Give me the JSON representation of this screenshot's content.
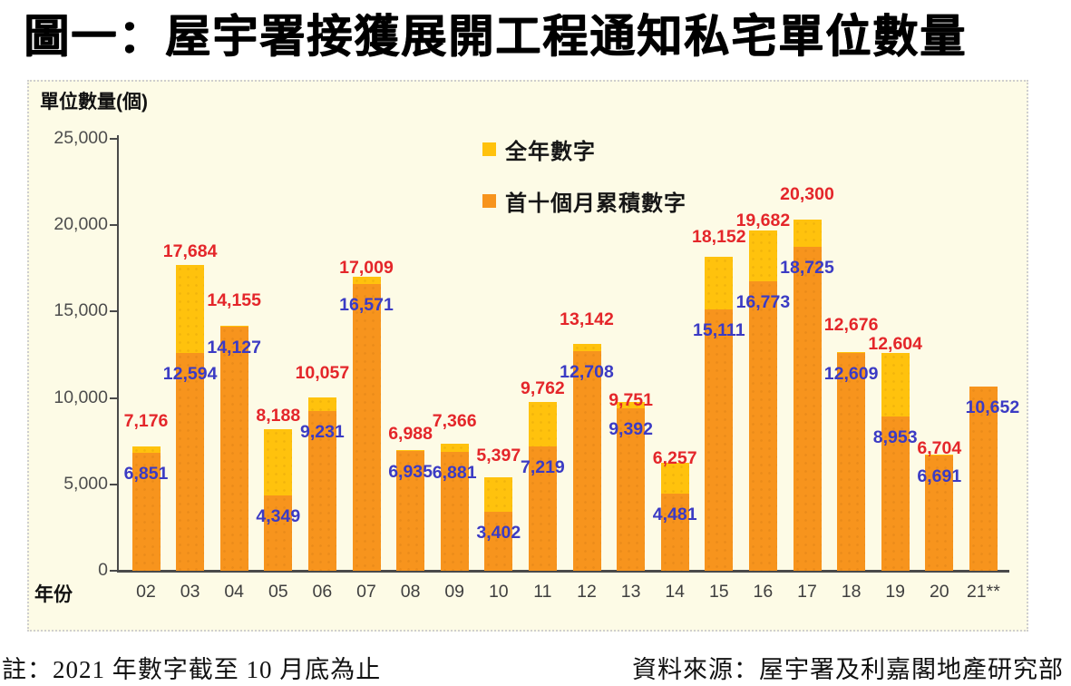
{
  "page": {
    "title": "圖一：屋宇署接獲展開工程通知私宅單位數量",
    "note_left": "註：2021 年數字截至 10 月底為止",
    "note_right": "資料來源：屋宇署及利嘉閣地產研究部"
  },
  "chart_data": {
    "type": "bar",
    "title": "圖一：屋宇署接獲展開工程通知私宅單位數量",
    "ylabel": "單位數量(個)",
    "xlabel": "年份",
    "categories": [
      "02",
      "03",
      "04",
      "05",
      "06",
      "07",
      "08",
      "09",
      "10",
      "11",
      "12",
      "13",
      "14",
      "15",
      "16",
      "17",
      "18",
      "19",
      "20",
      "21**"
    ],
    "series": [
      {
        "name": "全年數字",
        "color": "#FFC20D",
        "value_label_color": "#E4262A",
        "values": [
          7176,
          17684,
          14155,
          8188,
          10057,
          17009,
          6988,
          7366,
          5397,
          9762,
          13142,
          9751,
          6257,
          18152,
          19682,
          20300,
          12676,
          12604,
          6704,
          null
        ]
      },
      {
        "name": "首十個月累積數字",
        "color": "#F7941D",
        "value_label_color": "#3B3BC4",
        "values": [
          6851,
          12594,
          14127,
          4349,
          9231,
          16571,
          6935,
          6881,
          3402,
          7219,
          12708,
          9392,
          4481,
          15111,
          16773,
          18725,
          12609,
          8953,
          6691,
          10652
        ]
      }
    ],
    "ylim": [
      0,
      25000
    ],
    "ytick_step": 5000,
    "ytick_labels": [
      "0",
      "5,000",
      "10,000",
      "15,000",
      "20,000",
      "25,000"
    ],
    "grid": false,
    "legend_position": "inside-top-center",
    "panel_background": "#FDFBE6",
    "layout_hints": {
      "full_year_label_dy": [
        -13,
        0,
        -13,
        0,
        -12,
        5,
        -3,
        -10,
        -9,
        0,
        -12,
        13,
        10,
        -7,
        4,
        -13,
        -15,
        5,
        8,
        0
      ],
      "ten_month_label_dy": 24,
      "ten_month_label_dx_last": 10
    }
  }
}
